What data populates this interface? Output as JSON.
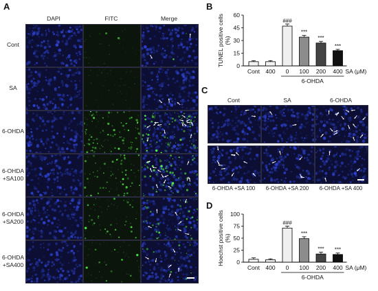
{
  "panels": {
    "A": {
      "label": "A",
      "columns": [
        "DAPI",
        "FITC",
        "Merge"
      ],
      "rows": [
        {
          "label": [
            "Cont"
          ],
          "fitc_density": 0.02,
          "arrows": 2
        },
        {
          "label": [
            "SA"
          ],
          "fitc_density": 0.0,
          "arrows": 3
        },
        {
          "label": [
            "6-OHDA"
          ],
          "fitc_density": 0.9,
          "arrows": 14
        },
        {
          "label": [
            "6-OHDA",
            "+SA100"
          ],
          "fitc_density": 0.6,
          "arrows": 12
        },
        {
          "label": [
            "6-OHDA",
            "+SA200"
          ],
          "fitc_density": 0.35,
          "arrows": 7
        },
        {
          "label": [
            "6-OHDA",
            "+SA400"
          ],
          "fitc_density": 0.15,
          "arrows": 6
        }
      ]
    },
    "C": {
      "label": "C",
      "top_labels": [
        "Cont",
        "SA",
        "6-OHDA"
      ],
      "bottom_labels": [
        "6-OHDA +SA 100",
        "6-OHDA +SA 200",
        "6-OHDA +SA 400"
      ],
      "arrow_counts": [
        2,
        2,
        16,
        10,
        5,
        3
      ]
    }
  },
  "colors": {
    "dapi_bg": "#0c0e34",
    "fitc_bg": "#0b150b",
    "bar_fills": [
      "#f2f2f2",
      "#f2f2f2",
      "#efefef",
      "#8c8c8c",
      "#444444",
      "#111111"
    ]
  },
  "chart_data": [
    {
      "panel": "B",
      "type": "bar",
      "ylabel": "TUNEL positive cells (%)",
      "ylim": [
        0,
        60
      ],
      "yticks": [
        0,
        15,
        30,
        45,
        60
      ],
      "categories": [
        "Cont",
        "400",
        "0",
        "100",
        "200",
        "400"
      ],
      "values": [
        5,
        5,
        47,
        34,
        27,
        18
      ],
      "errors": [
        1.2,
        1.2,
        2.5,
        2,
        2,
        1.5
      ],
      "annotations": [
        "",
        "",
        "###",
        "***",
        "***",
        "***"
      ],
      "unit_label": "SA (μM)",
      "group_label": "6-OHDA",
      "grid": false
    },
    {
      "panel": "D",
      "type": "bar",
      "ylabel": "Hoechst positive cells (%)",
      "ylim": [
        0,
        100
      ],
      "yticks": [
        0,
        25,
        50,
        75,
        100
      ],
      "categories": [
        "Cont",
        "400",
        "0",
        "100",
        "200",
        "400"
      ],
      "values": [
        6,
        5,
        71,
        49,
        17,
        16
      ],
      "errors": [
        3,
        2,
        4,
        4,
        4,
        3
      ],
      "annotations": [
        "",
        "",
        "###",
        "***",
        "***",
        "***"
      ],
      "unit_label": "SA (μM)",
      "group_label": "6-OHDA",
      "grid": false
    }
  ]
}
